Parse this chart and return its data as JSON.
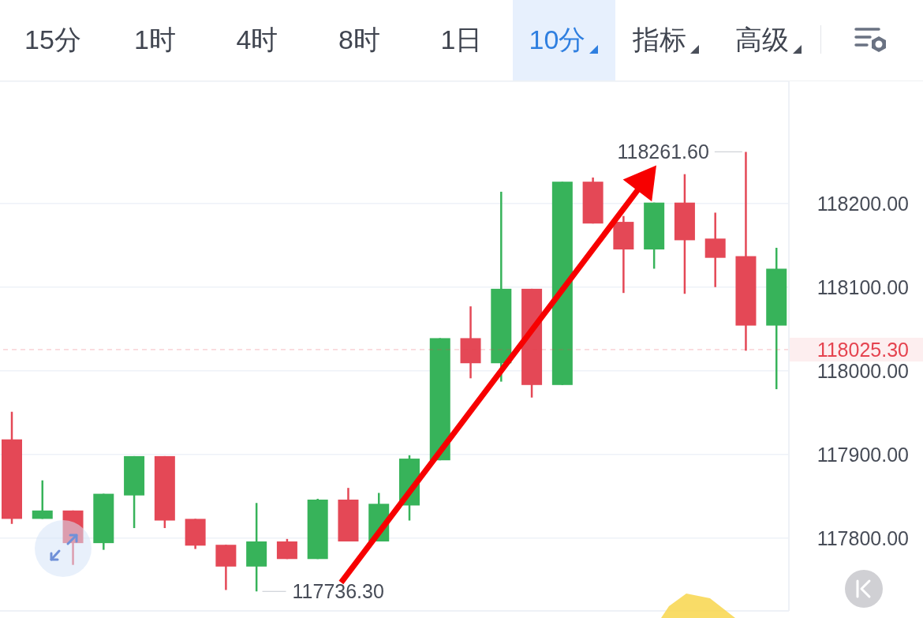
{
  "chart_data": {
    "type": "candlestick",
    "categories": [
      null,
      null,
      null,
      null,
      null,
      null,
      null,
      null,
      null,
      null,
      null,
      null,
      null,
      null,
      null,
      null,
      null,
      null,
      null,
      null,
      null,
      null,
      null,
      null,
      null,
      null
    ],
    "ohlc": [
      [
        117918,
        117951,
        117817,
        117823
      ],
      [
        117823,
        117869,
        117823,
        117833
      ],
      [
        117833,
        117833,
        117768,
        117794
      ],
      [
        117794,
        117853,
        117786,
        117853
      ],
      [
        117851,
        117898,
        117812,
        117898
      ],
      [
        117898,
        117898,
        117812,
        117821
      ],
      [
        117823,
        117823,
        117787,
        117791
      ],
      [
        117792,
        117792,
        117738,
        117766
      ],
      [
        117766,
        117842,
        117736.3,
        117796
      ],
      [
        117796,
        117799,
        117775,
        117775
      ],
      [
        117775,
        117847,
        117775,
        117846
      ],
      [
        117846,
        117860,
        117796,
        117796
      ],
      [
        117796,
        117854,
        117796,
        117841
      ],
      [
        117839,
        117899,
        117821,
        117895
      ],
      [
        117893,
        118039,
        117893,
        118039
      ],
      [
        118039,
        118077,
        117991,
        118009
      ],
      [
        118009,
        118214,
        117987,
        118098
      ],
      [
        118098,
        118098,
        117968,
        117983
      ],
      [
        117983,
        118226,
        117983,
        118226
      ],
      [
        118226,
        118231,
        118176,
        118176
      ],
      [
        118178,
        118185,
        118093,
        118145
      ],
      [
        118145,
        118201,
        118122,
        118201
      ],
      [
        118201,
        118235,
        118092,
        118156
      ],
      [
        118158,
        118189,
        118100,
        118135
      ],
      [
        118137,
        118261.6,
        118024,
        118054
      ],
      [
        118054,
        118147,
        117978,
        118122
      ]
    ],
    "colors": [
      "#e44856",
      "#37b35a",
      "#e44856",
      "#37b35a",
      "#37b35a",
      "#e44856",
      "#e44856",
      "#e44856",
      "#37b35a",
      "#e44856",
      "#37b35a",
      "#e44856",
      "#37b35a",
      "#37b35a",
      "#37b35a",
      "#e44856",
      "#37b35a",
      "#e44856",
      "#37b35a",
      "#e44856",
      "#e44856",
      "#37b35a",
      "#e44856",
      "#e44856",
      "#e44856",
      "#37b35a"
    ],
    "value_labels": [
      null,
      null,
      null,
      null,
      null,
      null,
      null,
      null,
      "117736.30",
      null,
      null,
      null,
      null,
      null,
      null,
      null,
      null,
      null,
      null,
      null,
      null,
      null,
      null,
      null,
      "118261.60",
      null
    ],
    "ylim": [
      117713,
      118346
    ],
    "yticks": [
      {
        "value": 117800,
        "label": "117800.00"
      },
      {
        "value": 117900,
        "label": "117900.00"
      },
      {
        "value": 118000,
        "label": "118000.00"
      },
      {
        "value": 118100,
        "label": "118100.00"
      },
      {
        "value": 118200,
        "label": "118200.00"
      }
    ],
    "grid": "y",
    "tick_labels": "y",
    "ref_lines": [
      {
        "axis": "y",
        "value": 118025.3,
        "label": "118025.30",
        "color": "#e5434f",
        "line_style": "dashed"
      }
    ],
    "annotations": [
      "15分",
      "1时",
      "4时",
      "8时",
      "1日",
      "10分",
      "指标",
      "高级"
    ]
  }
}
